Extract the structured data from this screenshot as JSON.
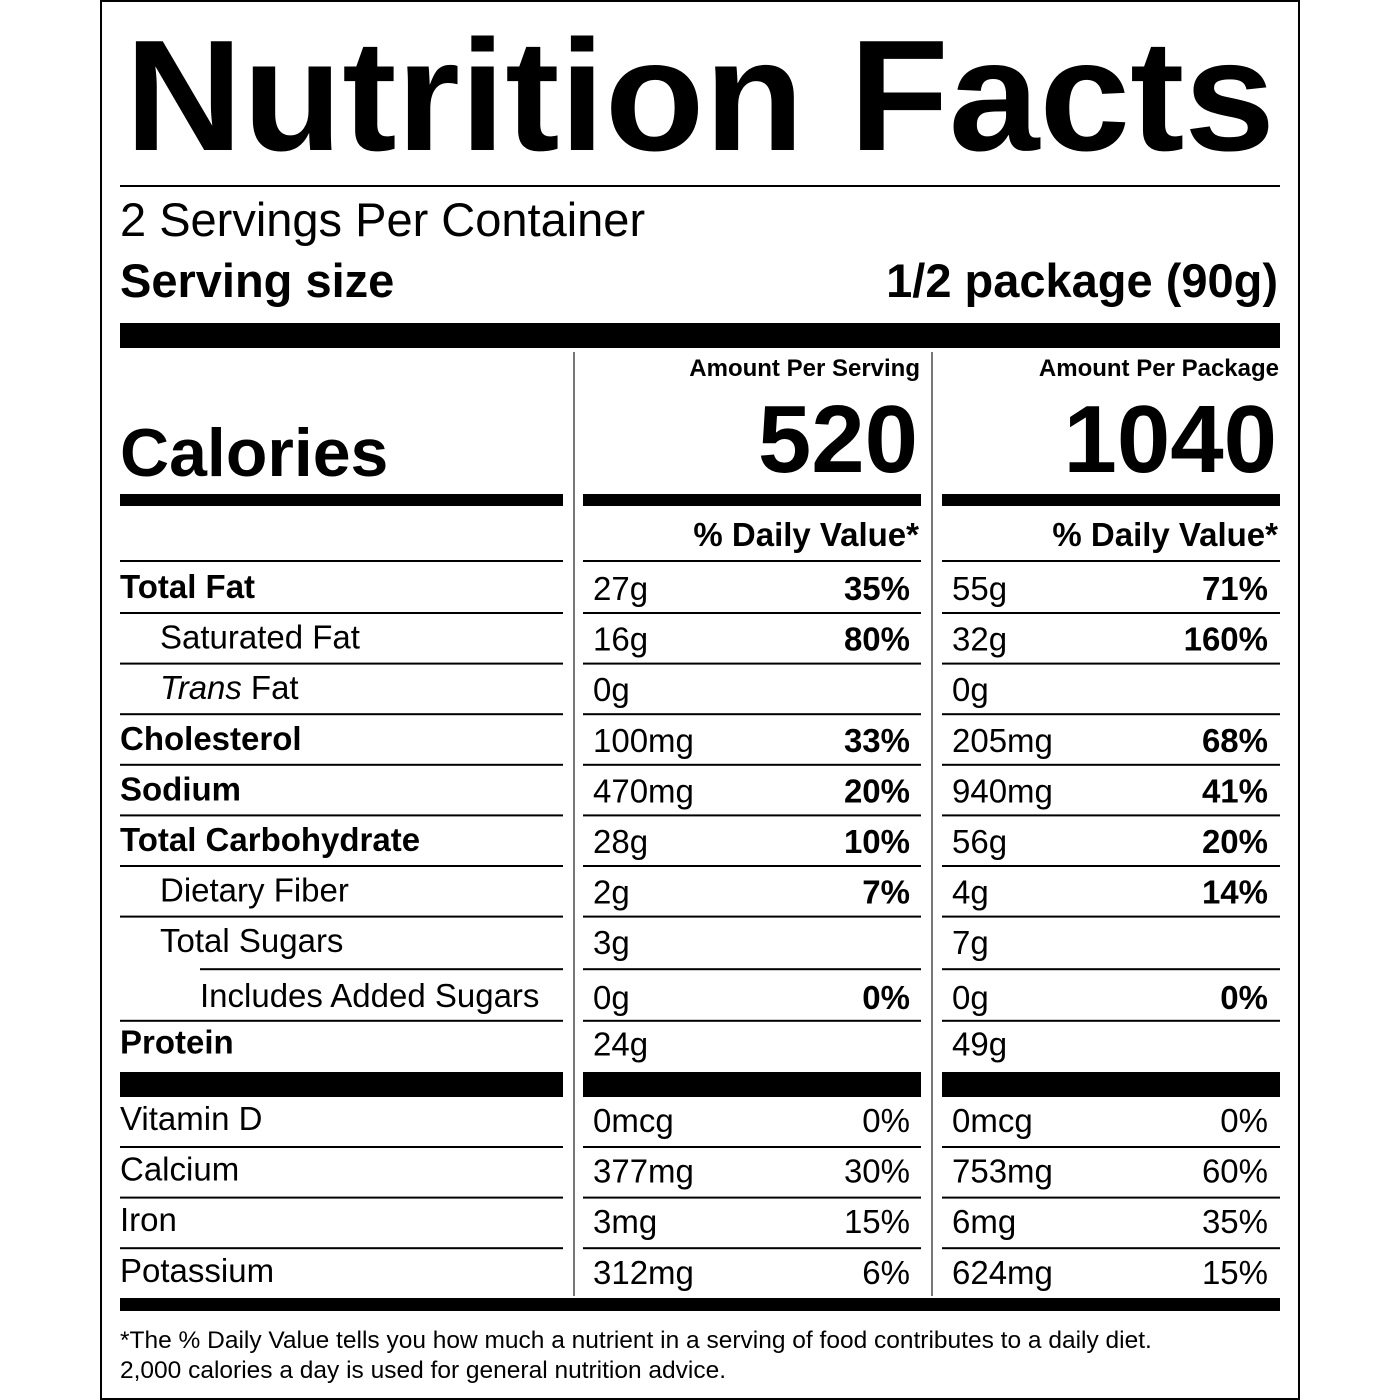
{
  "title": "Nutrition Facts",
  "servings_per_container": "2 Servings Per Container",
  "serving_size": {
    "label": "Serving size",
    "value": "1/2 package (90g)"
  },
  "calories": {
    "label": "Calories",
    "columns": [
      {
        "header": "Amount Per Serving",
        "value": "520",
        "daily_value_header": "% Daily Value*"
      },
      {
        "header": "Amount Per Package",
        "value": "1040",
        "daily_value_header": "% Daily Value*"
      }
    ]
  },
  "nutrients": [
    {
      "name": "Total Fat",
      "bold": true,
      "level": 0,
      "values": [
        [
          "27g",
          "35%"
        ],
        [
          "55g",
          "71%"
        ]
      ]
    },
    {
      "name": "Saturated Fat",
      "bold": false,
      "level": 1,
      "values": [
        [
          "16g",
          "80%"
        ],
        [
          "32g",
          "160%"
        ]
      ]
    },
    {
      "name_italic": "Trans",
      "name": "Fat",
      "bold": false,
      "level": 1,
      "values": [
        [
          "0g"
        ],
        [
          "0g"
        ]
      ]
    },
    {
      "name": "Cholesterol",
      "bold": true,
      "level": 0,
      "values": [
        [
          "100mg",
          "33%"
        ],
        [
          "205mg",
          "68%"
        ]
      ]
    },
    {
      "name": "Sodium",
      "bold": true,
      "level": 0,
      "values": [
        [
          "470mg",
          "20%"
        ],
        [
          "940mg",
          "41%"
        ]
      ]
    },
    {
      "name": "Total Carbohydrate",
      "bold": true,
      "level": 0,
      "values": [
        [
          "28g",
          "10%"
        ],
        [
          "56g",
          "20%"
        ]
      ]
    },
    {
      "name": "Dietary Fiber",
      "bold": false,
      "level": 1,
      "values": [
        [
          "2g",
          "7%"
        ],
        [
          "4g",
          "14%"
        ]
      ]
    },
    {
      "name": "Total Sugars",
      "bold": false,
      "level": 1,
      "values": [
        [
          "3g"
        ],
        [
          "7g"
        ]
      ]
    },
    {
      "name": "Includes Added Sugars",
      "bold": false,
      "level": 2,
      "values": [
        [
          "0g",
          "0%"
        ],
        [
          "0g",
          "0%"
        ]
      ]
    },
    {
      "name": "Protein",
      "bold": true,
      "level": 0,
      "values": [
        [
          "24g"
        ],
        [
          "49g"
        ]
      ]
    }
  ],
  "vitamins": [
    {
      "name": "Vitamin D",
      "values": [
        [
          "0mcg",
          "0%"
        ],
        [
          "0mcg",
          "0%"
        ]
      ]
    },
    {
      "name": "Calcium",
      "values": [
        [
          "377mg",
          "30%"
        ],
        [
          "753mg",
          "60%"
        ]
      ]
    },
    {
      "name": "Iron",
      "values": [
        [
          "3mg",
          "15%"
        ],
        [
          "6mg",
          "35%"
        ]
      ]
    },
    {
      "name": "Potassium",
      "values": [
        [
          "312mg",
          "6%"
        ],
        [
          "624mg",
          "15%"
        ]
      ]
    }
  ],
  "footnote": [
    "*The % Daily Value tells you how much a nutrient in a serving of food contributes to a daily diet.",
    "2,000 calories a day is used for general nutrition advice."
  ]
}
